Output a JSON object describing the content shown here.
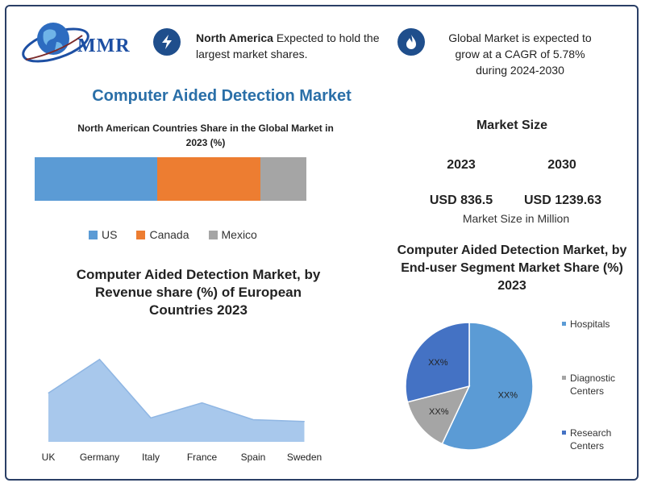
{
  "brand": {
    "logo_text": "MMR"
  },
  "highlights": [
    {
      "icon": "lightning-icon",
      "bold": "North America",
      "text": " Expected to hold the largest market shares."
    },
    {
      "icon": "flame-icon",
      "text": "Global Market is expected to grow at a CAGR of 5.78% during 2024-2030"
    }
  ],
  "main_title": "Computer Aided Detection Market",
  "market_size": {
    "title": "Market Size",
    "years": [
      "2023",
      "2030"
    ],
    "values": [
      "USD 836.5",
      "USD 1239.63"
    ],
    "unit_label": "Market Size in Million"
  },
  "colors": {
    "blue": "#5b9bd5",
    "orange": "#ed7d31",
    "gray": "#a5a5a5",
    "dark_blue": "#4472c4",
    "navy": "#1f4e8c"
  },
  "chart_data": [
    {
      "type": "bar",
      "orientation": "horizontal-stacked",
      "title": "North American Countries Share in the Global Market in 2023 (%)",
      "series": [
        {
          "name": "US",
          "values": [
            45
          ],
          "color": "#5b9bd5"
        },
        {
          "name": "Canada",
          "values": [
            38
          ],
          "color": "#ed7d31"
        },
        {
          "name": "Mexico",
          "values": [
            17
          ],
          "color": "#a5a5a5"
        }
      ],
      "legend": "bottom"
    },
    {
      "type": "area",
      "title": "Computer Aided Detection Market, by Revenue share (%) of European Countries 2023",
      "categories": [
        "UK",
        "Germany",
        "Italy",
        "France",
        "Spain",
        "Sweden"
      ],
      "values": [
        55,
        93,
        27,
        44,
        25,
        23
      ],
      "ylim": [
        0,
        100
      ],
      "grid": false
    },
    {
      "type": "pie",
      "title": "Computer Aided Detection Market, by End-user Segment Market Share (%) 2023",
      "slices": [
        {
          "name": "Hospitals",
          "value": 57,
          "label": "XX%",
          "color": "#5b9bd5"
        },
        {
          "name": "Diagnostic Centers",
          "value": 14,
          "label": "XX%",
          "color": "#a5a5a5"
        },
        {
          "name": "Research Centers",
          "value": 29,
          "label": "XX%",
          "color": "#4472c4"
        }
      ],
      "legend": "right"
    }
  ]
}
